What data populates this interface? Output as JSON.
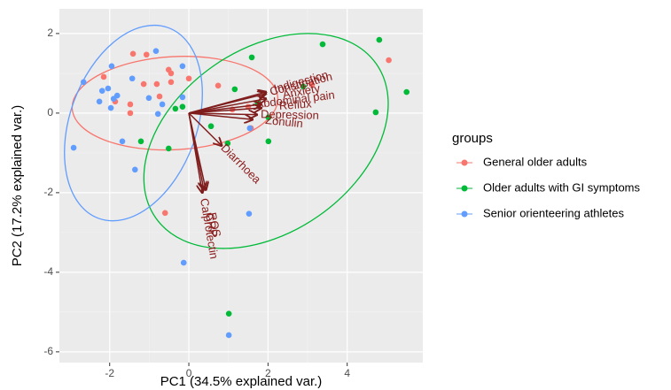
{
  "chart_data": {
    "type": "scatter",
    "xlabel": "PC1 (34.5% explained var.)",
    "ylabel": "PC2 (17.2% explained var.)",
    "xlim": [
      -3.27,
      5.91
    ],
    "xticks": [
      -2,
      0,
      2,
      4
    ],
    "ylim": [
      -6.27,
      2.62
    ],
    "yticks": [
      -6,
      -4,
      -2,
      0,
      2
    ],
    "grid": true,
    "legend_title": "groups",
    "legend": "right",
    "series": [
      {
        "name": "General older adults",
        "color": "#F8766D",
        "x": [
          -2.15,
          -1.41,
          -1.07,
          -0.51,
          -0.45,
          -0.45,
          0,
          0.74,
          3.11,
          5.05,
          -1.14,
          -0.81,
          -0.74,
          -1.48,
          -1.48,
          -1.86,
          -0.6,
          1.5,
          1.1,
          1.57
        ],
        "values": [
          0.91,
          1.49,
          1.47,
          1.09,
          1.0,
          0.78,
          0.87,
          0.69,
          0.71,
          1.33,
          0.73,
          0.73,
          0.42,
          0.22,
          0,
          0.29,
          -2.51,
          0.16,
          0.09,
          -0.38
        ],
        "ellipse": {
          "cx": -0.35,
          "cy": 0.25,
          "rx": 2.6,
          "ry": 1.17,
          "angle": 3
        }
      },
      {
        "name": "Older adults with GI symptoms",
        "color": "#00BA38",
        "x": [
          4.81,
          3.38,
          1.59,
          2.89,
          1.16,
          5.5,
          4.72,
          1.74,
          2.01,
          2.01,
          -0.16,
          -0.34,
          -1.21,
          -0.51,
          0.56,
          0.98,
          1.01
        ],
        "values": [
          1.84,
          1.73,
          1.4,
          0.67,
          0.6,
          0.53,
          0.02,
          0.24,
          -0.11,
          -0.71,
          0.16,
          0.11,
          -0.71,
          -0.89,
          -0.33,
          -0.76,
          -5.04
        ],
        "ellipse": {
          "cx": 1.95,
          "cy": -0.7,
          "rx": 3.4,
          "ry": 2.3,
          "angle": 35
        }
      },
      {
        "name": "Senior orienteering athletes",
        "color": "#619CFF",
        "x": [
          -2.66,
          -1.95,
          -0.83,
          -0.16,
          -2.19,
          -2.04,
          -1.81,
          -1.9,
          -1.97,
          -2.26,
          -1.43,
          -1.01,
          -0.67,
          -0.78,
          -0.16,
          -1.68,
          -1.36,
          -2.91,
          1.54,
          1.52,
          -0.13,
          1.01
        ],
        "values": [
          0.78,
          1.18,
          1.56,
          1.18,
          0.56,
          0.62,
          0.44,
          0.36,
          0.13,
          0.29,
          0.87,
          0.38,
          0.22,
          -0.02,
          0.4,
          -0.71,
          -1.42,
          -0.87,
          -0.38,
          -2.53,
          -3.76,
          -5.58
        ],
        "ellipse": {
          "cx": -1.4,
          "cy": -0.25,
          "rx": 1.6,
          "ry": 2.55,
          "angle": -20
        }
      }
    ],
    "loadings": [
      {
        "name": "Indigestion",
        "x": 1.95,
        "y": 0.53
      },
      {
        "name": "Constipation",
        "x": 1.95,
        "y": 0.49
      },
      {
        "name": "Anxiety",
        "x": 1.95,
        "y": 0.36
      },
      {
        "name": "Abdominal pain",
        "x": 1.83,
        "y": 0.22
      },
      {
        "name": "Reflux",
        "x": 1.83,
        "y": 0.13
      },
      {
        "name": "Depression",
        "x": 1.72,
        "y": -0.04
      },
      {
        "name": "Zonulin",
        "x": 1.61,
        "y": -0.16
      },
      {
        "name": "Diarrhoea",
        "x": 0.83,
        "y": -0.82
      },
      {
        "name": "ROS",
        "x": 0.43,
        "y": -1.93
      },
      {
        "name": "CRP",
        "x": 0.38,
        "y": -1.93
      },
      {
        "name": "Calprotectin",
        "x": 0.34,
        "y": -2.0
      }
    ],
    "loading_color": "#7f1d1d"
  }
}
